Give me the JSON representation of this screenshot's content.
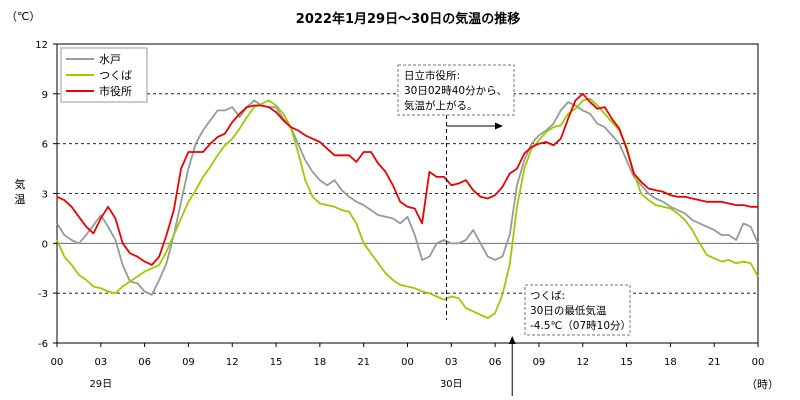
{
  "chart_data": {
    "type": "line",
    "title": "2022年1月29日～30日の気温の推移",
    "unit_label": "（℃）",
    "ylabel": "気温",
    "xunit_label": "（時）",
    "ylim": [
      -6,
      12
    ],
    "yticks": [
      12,
      9,
      6,
      3,
      0,
      -3,
      -6
    ],
    "xlim": [
      0,
      48
    ],
    "xticks": [
      0,
      3,
      6,
      9,
      12,
      15,
      18,
      21,
      24,
      27,
      30,
      33,
      36,
      39,
      42,
      45,
      48
    ],
    "xtick_labels": [
      "00",
      "03",
      "06",
      "09",
      "12",
      "15",
      "18",
      "21",
      "00",
      "03",
      "06",
      "09",
      "12",
      "15",
      "18",
      "21",
      "00"
    ],
    "day_labels": [
      {
        "x": 3,
        "text": "29日"
      },
      {
        "x": 27,
        "text": "30日"
      }
    ],
    "grid": "horizontal dashed at 9, 6, 3, -3",
    "legend_position": "top-left",
    "series": [
      {
        "name": "水戸",
        "color": "#999999",
        "x": [
          0,
          0.5,
          1,
          1.5,
          2,
          2.5,
          3,
          3.5,
          4,
          4.5,
          5,
          5.5,
          6,
          6.5,
          7,
          7.5,
          8,
          8.5,
          9,
          9.5,
          10,
          10.5,
          11,
          11.5,
          12,
          12.5,
          13,
          13.5,
          14,
          14.5,
          15,
          15.5,
          16,
          16.5,
          17,
          17.5,
          18,
          18.5,
          19,
          19.5,
          20,
          20.5,
          21,
          21.5,
          22,
          22.5,
          23,
          23.5,
          24,
          24.5,
          25,
          25.5,
          26,
          26.5,
          27,
          27.5,
          28,
          28.5,
          29,
          29.5,
          30,
          30.5,
          31,
          31.5,
          32,
          32.5,
          33,
          33.5,
          34,
          34.5,
          35,
          35.5,
          36,
          36.5,
          37,
          37.5,
          38,
          38.5,
          39,
          39.5,
          40,
          40.5,
          41,
          41.5,
          42,
          42.5,
          43,
          43.5,
          44,
          44.5,
          45,
          45.5,
          46,
          46.5,
          47,
          47.5,
          48
        ],
        "values": [
          1.2,
          0.5,
          0.2,
          0,
          0.5,
          1.1,
          1.7,
          1,
          0.2,
          -1.3,
          -2.3,
          -2.4,
          -2.9,
          -3.1,
          -2.2,
          -1.2,
          0.5,
          2.5,
          4.5,
          6,
          6.8,
          7.4,
          8,
          8,
          8.2,
          7.6,
          8.2,
          8.6,
          8.3,
          8.2,
          8.2,
          7.5,
          7,
          6,
          5,
          4.3,
          3.8,
          3.5,
          3.8,
          3.2,
          2.8,
          2.5,
          2.3,
          2,
          1.7,
          1.6,
          1.5,
          1.2,
          1.6,
          0.5,
          -1,
          -0.8,
          0,
          0.2,
          0,
          0,
          0.2,
          0.8,
          0,
          -0.8,
          -1,
          -0.8,
          0.5,
          3.5,
          5,
          6,
          6.5,
          6.8,
          7.2,
          8,
          8.5,
          8.3,
          8,
          7.8,
          7.2,
          7,
          6.5,
          6,
          5,
          4,
          3.5,
          3,
          2.7,
          2.5,
          2.2,
          2,
          1.8,
          1.4,
          1.2,
          1,
          0.8,
          0.5,
          0.5,
          0.2,
          1.2,
          1,
          0
        ],
        "note": "values read approximately from the plotted line"
      },
      {
        "name": "つくば",
        "color": "#99cc00",
        "x": [
          0,
          0.5,
          1,
          1.5,
          2,
          2.5,
          3,
          3.5,
          4,
          4.5,
          5,
          5.5,
          6,
          6.5,
          7,
          7.5,
          8,
          8.5,
          9,
          9.5,
          10,
          10.5,
          11,
          11.5,
          12,
          12.5,
          13,
          13.5,
          14,
          14.5,
          15,
          15.5,
          16,
          16.5,
          17,
          17.5,
          18,
          18.5,
          19,
          19.5,
          20,
          20.5,
          21,
          21.5,
          22,
          22.5,
          23,
          23.5,
          24,
          24.5,
          25,
          25.5,
          26,
          26.5,
          27,
          27.5,
          28,
          28.5,
          29,
          29.5,
          30,
          30.5,
          31,
          31.5,
          32,
          32.5,
          33,
          33.5,
          34,
          34.5,
          35,
          35.5,
          36,
          36.5,
          37,
          37.5,
          38,
          38.5,
          39,
          39.5,
          40,
          40.5,
          41,
          41.5,
          42,
          42.5,
          43,
          43.5,
          44,
          44.5,
          45,
          45.5,
          46,
          46.5,
          47,
          47.5,
          48
        ],
        "values": [
          0.2,
          -0.8,
          -1.3,
          -1.9,
          -2.2,
          -2.6,
          -2.7,
          -2.9,
          -3,
          -2.6,
          -2.3,
          -2,
          -1.7,
          -1.5,
          -1.3,
          -0.5,
          0.5,
          1.5,
          2.5,
          3.2,
          4,
          4.6,
          5.3,
          5.9,
          6.3,
          6.9,
          7.6,
          8.2,
          8.4,
          8.6,
          8.3,
          7.8,
          7,
          5.5,
          3.8,
          2.8,
          2.4,
          2.3,
          2.2,
          2,
          1.9,
          1.2,
          0,
          -0.6,
          -1.2,
          -1.8,
          -2.2,
          -2.5,
          -2.6,
          -2.7,
          -2.9,
          -3,
          -3.2,
          -3.4,
          -3.2,
          -3.3,
          -3.9,
          -4.1,
          -4.3,
          -4.5,
          -4.2,
          -3.1,
          -1.3,
          2.2,
          4.5,
          5.7,
          6.2,
          6.7,
          7,
          7.1,
          7.8,
          8.1,
          8.6,
          8.7,
          8.3,
          7.8,
          7.3,
          6.8,
          5.8,
          4.2,
          3,
          2.6,
          2.3,
          2.2,
          2.1,
          1.8,
          1.4,
          0.8,
          0,
          -0.7,
          -0.9,
          -1.1,
          -1,
          -1.2,
          -1.1,
          -1.2,
          -2
        ]
      },
      {
        "name": "市役所",
        "color": "#ee0000",
        "x": [
          0,
          0.5,
          1,
          1.5,
          2,
          2.5,
          3,
          3.5,
          4,
          4.5,
          5,
          5.5,
          6,
          6.5,
          7,
          7.5,
          8,
          8.5,
          9,
          9.5,
          10,
          10.5,
          11,
          11.5,
          12,
          12.5,
          13,
          13.5,
          14,
          14.5,
          15,
          15.5,
          16,
          16.5,
          17,
          17.5,
          18,
          18.5,
          19,
          19.5,
          20,
          20.5,
          21,
          21.5,
          22,
          22.5,
          23,
          23.5,
          24,
          24.5,
          25,
          25.5,
          26,
          26.5,
          27,
          27.5,
          28,
          28.5,
          29,
          29.5,
          30,
          30.5,
          31,
          31.5,
          32,
          32.5,
          33,
          33.5,
          34,
          34.5,
          35,
          35.5,
          36,
          36.5,
          37,
          37.5,
          38,
          38.5,
          39,
          39.5,
          40,
          40.5,
          41,
          41.5,
          42,
          42.5,
          43,
          43.5,
          44,
          44.5,
          45,
          45.5,
          46,
          46.5,
          47,
          47.5,
          48
        ],
        "values": [
          2.8,
          2.6,
          2.2,
          1.6,
          1,
          0.6,
          1.5,
          2.2,
          1.5,
          0,
          -0.6,
          -0.8,
          -1.1,
          -1.3,
          -0.8,
          0.5,
          2,
          4.5,
          5.5,
          5.5,
          5.5,
          6,
          6.4,
          6.6,
          7.3,
          7.8,
          8.2,
          8.3,
          8.3,
          8.2,
          7.9,
          7.4,
          7,
          6.8,
          6.5,
          6.3,
          6.1,
          5.7,
          5.3,
          5.3,
          5.3,
          4.9,
          5.5,
          5.5,
          4.8,
          4.3,
          3.5,
          2.5,
          2.2,
          2.1,
          1.2,
          4.3,
          4,
          4,
          3.5,
          3.6,
          3.8,
          3.2,
          2.8,
          2.7,
          2.9,
          3.4,
          4.2,
          4.5,
          5.4,
          5.8,
          6,
          6.1,
          5.9,
          6.3,
          7.5,
          8.6,
          9,
          8.5,
          8.1,
          8.2,
          7.5,
          6.9,
          5.7,
          4.2,
          3.7,
          3.3,
          3.2,
          3.1,
          2.9,
          2.8,
          2.8,
          2.7,
          2.6,
          2.5,
          2.5,
          2.5,
          2.4,
          2.3,
          2.3,
          2.2,
          2.2
        ]
      }
    ],
    "annotations": [
      {
        "id": "hitachi",
        "lines": [
          "日立市役所:",
          "30日02時40分から、",
          "気温が上がる。"
        ],
        "x": 26.67
      },
      {
        "id": "tsukuba",
        "lines": [
          "つくば:",
          "30日の最低気温",
          "-4.5℃（07時10分）"
        ],
        "x": 31.17,
        "y": -4.5
      }
    ]
  }
}
